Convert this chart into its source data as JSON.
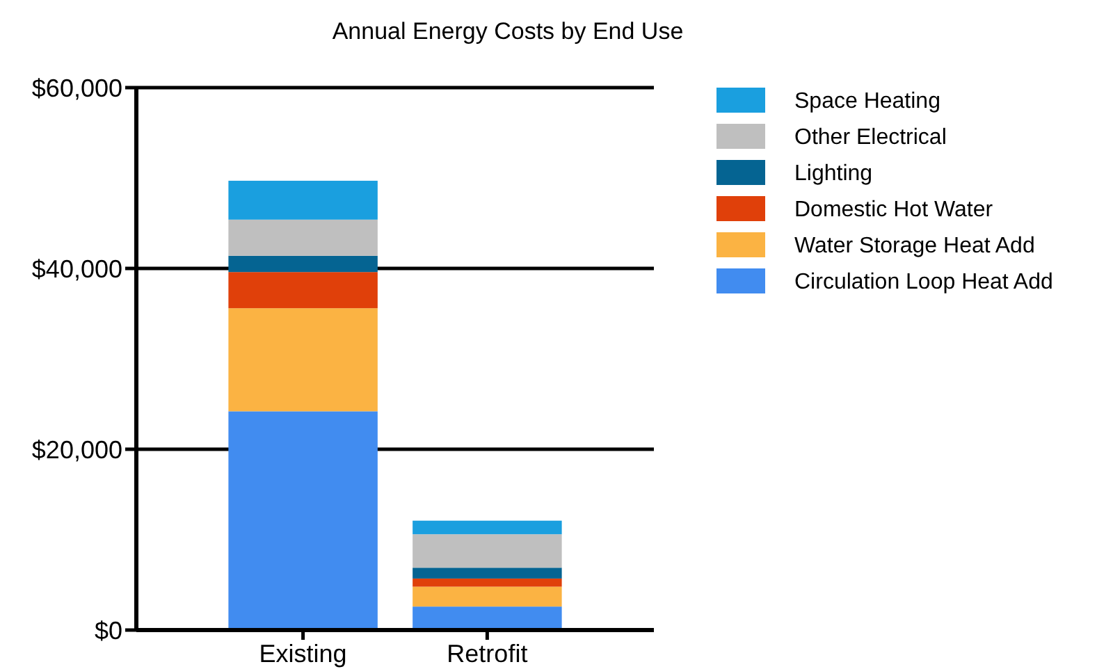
{
  "chart_data": {
    "type": "bar",
    "title": "Annual Energy Costs by End Use",
    "categories": [
      "Existing",
      "Retrofit"
    ],
    "stacked": true,
    "ylim": [
      0,
      60000
    ],
    "yticks": [
      {
        "value": 0,
        "label": "$0"
      },
      {
        "value": 20000,
        "label": "$20,000"
      },
      {
        "value": 40000,
        "label": "$40,000"
      },
      {
        "value": 60000,
        "label": "$60,000"
      }
    ],
    "grid": "y",
    "legend": "top right",
    "series": [
      {
        "name": "Circulation Loop Heat Add",
        "color": "#418cf0",
        "values": [
          24200,
          2600
        ]
      },
      {
        "name": "Water Storage Heat Add",
        "color": "#fbb343",
        "values": [
          11400,
          2200
        ]
      },
      {
        "name": "Domestic Hot Water",
        "color": "#e0400a",
        "values": [
          4000,
          900
        ]
      },
      {
        "name": "Lighting",
        "color": "#056492",
        "values": [
          1800,
          1200
        ]
      },
      {
        "name": "Other Electrical",
        "color": "#bfbfbf",
        "values": [
          4000,
          3700
        ]
      },
      {
        "name": "Space Heating",
        "color": "#1a9fdf",
        "values": [
          4300,
          1500
        ]
      }
    ]
  }
}
